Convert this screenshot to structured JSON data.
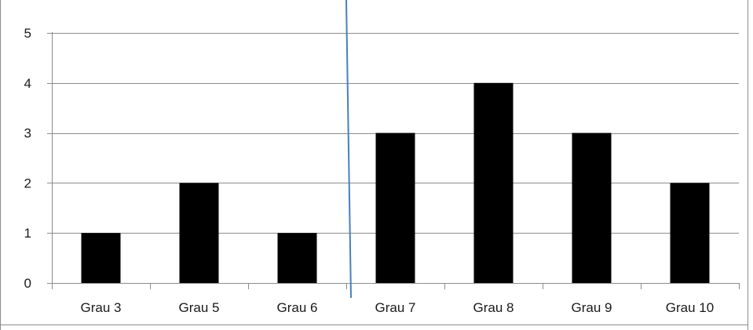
{
  "chart_data": {
    "type": "bar",
    "title": "",
    "xlabel": "",
    "ylabel": "",
    "categories": [
      "Grau 3",
      "Grau 5",
      "Grau 6",
      "Grau 7",
      "Grau 8",
      "Grau 9",
      "Grau 10"
    ],
    "values": [
      1,
      2,
      1,
      3,
      4,
      3,
      2
    ],
    "ylim": [
      0,
      5
    ],
    "yticks": [
      "0",
      "1",
      "2",
      "3",
      "4",
      "5"
    ],
    "grid": true,
    "legend": "none",
    "bar_color": "#000000",
    "grid_color": "#8c8c8c",
    "divider": {
      "between": [
        "Grau 6",
        "Grau 7"
      ],
      "color": "#4a7ebb"
    }
  }
}
